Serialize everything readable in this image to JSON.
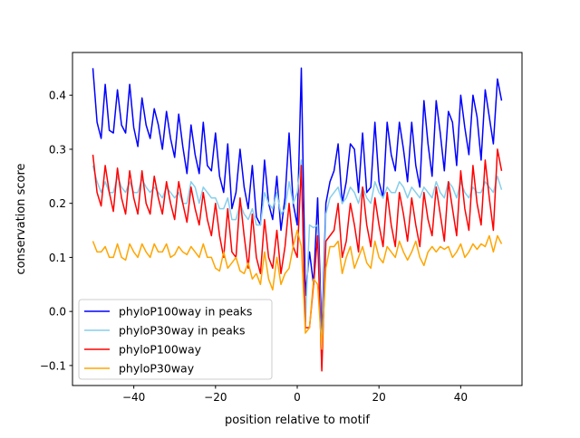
{
  "chart_data": {
    "type": "line",
    "title": "",
    "xlabel": "position relative to motif",
    "ylabel": "conservation score",
    "xlim": [
      -55,
      55
    ],
    "ylim": [
      -0.137,
      0.479
    ],
    "xticks": [
      -40,
      -20,
      0,
      20,
      40
    ],
    "xtick_labels": [
      "−40",
      "−20",
      "0",
      "20",
      "40"
    ],
    "yticks": [
      -0.1,
      0.0,
      0.1,
      0.2,
      0.3,
      0.4
    ],
    "ytick_labels": [
      "−0.1",
      "0.0",
      "0.1",
      "0.2",
      "0.3",
      "0.4"
    ],
    "grid": false,
    "legend_position": "lower-left",
    "x_start": -50,
    "x_end": 50,
    "series": [
      {
        "name": "phyloP100way in peaks",
        "color": "#0000ff",
        "values": [
          0.45,
          0.35,
          0.32,
          0.42,
          0.335,
          0.33,
          0.41,
          0.345,
          0.33,
          0.42,
          0.34,
          0.305,
          0.395,
          0.345,
          0.32,
          0.375,
          0.345,
          0.3,
          0.37,
          0.32,
          0.285,
          0.365,
          0.305,
          0.255,
          0.345,
          0.29,
          0.255,
          0.35,
          0.27,
          0.26,
          0.33,
          0.25,
          0.22,
          0.31,
          0.19,
          0.22,
          0.3,
          0.23,
          0.19,
          0.27,
          0.175,
          0.16,
          0.28,
          0.2,
          0.17,
          0.25,
          0.15,
          0.21,
          0.33,
          0.2,
          0.16,
          0.45,
          0.03,
          0.11,
          0.05,
          0.21,
          -0.05,
          0.2,
          0.24,
          0.26,
          0.31,
          0.2,
          0.24,
          0.31,
          0.3,
          0.22,
          0.33,
          0.22,
          0.23,
          0.35,
          0.24,
          0.21,
          0.35,
          0.29,
          0.26,
          0.35,
          0.3,
          0.24,
          0.35,
          0.27,
          0.23,
          0.39,
          0.31,
          0.25,
          0.39,
          0.33,
          0.26,
          0.37,
          0.35,
          0.27,
          0.4,
          0.34,
          0.29,
          0.4,
          0.36,
          0.28,
          0.41,
          0.36,
          0.31,
          0.43,
          0.39
        ]
      },
      {
        "name": "phyloP30way in peaks",
        "color": "#87ceeb",
        "values": [
          0.27,
          0.24,
          0.22,
          0.24,
          0.22,
          0.22,
          0.25,
          0.23,
          0.22,
          0.24,
          0.22,
          0.22,
          0.245,
          0.23,
          0.22,
          0.23,
          0.22,
          0.21,
          0.23,
          0.22,
          0.21,
          0.22,
          0.2,
          0.2,
          0.24,
          0.23,
          0.2,
          0.23,
          0.22,
          0.21,
          0.21,
          0.19,
          0.19,
          0.21,
          0.17,
          0.17,
          0.2,
          0.18,
          0.17,
          0.19,
          0.16,
          0.16,
          0.22,
          0.2,
          0.19,
          0.22,
          0.18,
          0.19,
          0.24,
          0.2,
          0.22,
          0.28,
          -0.02,
          0.16,
          0.155,
          0.16,
          -0.08,
          0.18,
          0.21,
          0.22,
          0.23,
          0.2,
          0.21,
          0.23,
          0.22,
          0.2,
          0.23,
          0.21,
          0.2,
          0.24,
          0.22,
          0.21,
          0.23,
          0.22,
          0.22,
          0.24,
          0.23,
          0.21,
          0.23,
          0.22,
          0.21,
          0.23,
          0.22,
          0.21,
          0.24,
          0.22,
          0.21,
          0.24,
          0.23,
          0.21,
          0.24,
          0.22,
          0.21,
          0.23,
          0.22,
          0.22,
          0.24,
          0.23,
          0.22,
          0.25,
          0.225
        ]
      },
      {
        "name": "phyloP100way",
        "color": "#ff0000",
        "values": [
          0.29,
          0.22,
          0.195,
          0.27,
          0.22,
          0.185,
          0.265,
          0.21,
          0.18,
          0.26,
          0.21,
          0.18,
          0.26,
          0.2,
          0.18,
          0.25,
          0.21,
          0.18,
          0.24,
          0.2,
          0.17,
          0.24,
          0.2,
          0.165,
          0.23,
          0.19,
          0.16,
          0.22,
          0.17,
          0.14,
          0.2,
          0.14,
          0.1,
          0.19,
          0.11,
          0.1,
          0.21,
          0.14,
          0.08,
          0.18,
          0.1,
          0.07,
          0.17,
          0.1,
          0.08,
          0.15,
          0.07,
          0.12,
          0.2,
          0.12,
          0.1,
          0.27,
          -0.03,
          -0.03,
          0.05,
          0.14,
          -0.11,
          0.13,
          0.14,
          0.15,
          0.2,
          0.1,
          0.13,
          0.2,
          0.16,
          0.11,
          0.23,
          0.16,
          0.12,
          0.21,
          0.16,
          0.12,
          0.22,
          0.16,
          0.12,
          0.22,
          0.18,
          0.13,
          0.21,
          0.16,
          0.12,
          0.22,
          0.17,
          0.14,
          0.23,
          0.18,
          0.13,
          0.24,
          0.19,
          0.14,
          0.26,
          0.19,
          0.15,
          0.27,
          0.2,
          0.16,
          0.28,
          0.21,
          0.15,
          0.3,
          0.26
        ]
      },
      {
        "name": "phyloP30way",
        "color": "#ffa500",
        "values": [
          0.13,
          0.11,
          0.11,
          0.12,
          0.1,
          0.1,
          0.125,
          0.1,
          0.095,
          0.125,
          0.11,
          0.1,
          0.125,
          0.11,
          0.1,
          0.125,
          0.11,
          0.11,
          0.125,
          0.1,
          0.105,
          0.12,
          0.11,
          0.105,
          0.12,
          0.11,
          0.1,
          0.125,
          0.1,
          0.1,
          0.08,
          0.075,
          0.11,
          0.08,
          0.09,
          0.1,
          0.075,
          0.07,
          0.09,
          0.06,
          0.07,
          0.05,
          0.11,
          0.06,
          0.04,
          0.1,
          0.05,
          0.07,
          0.08,
          0.12,
          0.15,
          0.12,
          -0.04,
          -0.03,
          0.06,
          0.05,
          -0.07,
          0.08,
          0.12,
          0.12,
          0.13,
          0.07,
          0.1,
          0.12,
          0.08,
          0.1,
          0.12,
          0.09,
          0.08,
          0.13,
          0.1,
          0.09,
          0.12,
          0.11,
          0.1,
          0.13,
          0.11,
          0.095,
          0.11,
          0.13,
          0.1,
          0.085,
          0.11,
          0.12,
          0.11,
          0.12,
          0.115,
          0.12,
          0.1,
          0.11,
          0.125,
          0.1,
          0.11,
          0.125,
          0.115,
          0.125,
          0.12,
          0.14,
          0.11,
          0.14,
          0.125
        ]
      }
    ]
  }
}
